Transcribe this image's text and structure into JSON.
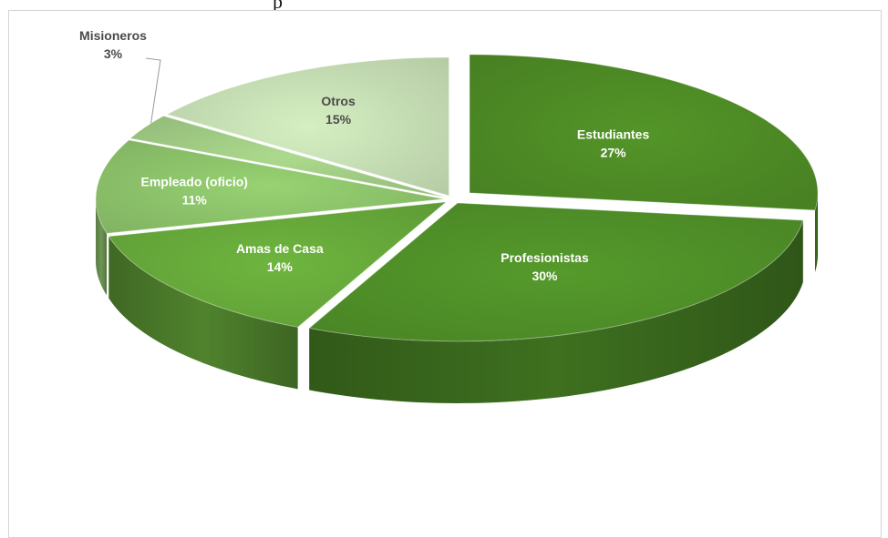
{
  "page": {
    "top_fragment": "p"
  },
  "colors": {
    "estudiantes": "#4d8a25",
    "profesionistas": "#4f8f28",
    "amas_de_casa": "#66a83a",
    "empleado": "#8cc26a",
    "misioneros": "#9fca83",
    "otros": "#c5ddb3",
    "label_light": "#ffffff",
    "label_dark": "#4b4b4b"
  },
  "chart_data": {
    "type": "pie",
    "style": "3d-exploded",
    "title": "",
    "slices": [
      {
        "label": "Estudiantes",
        "value": 27,
        "value_label": "27%"
      },
      {
        "label": "Profesionistas",
        "value": 30,
        "value_label": "30%"
      },
      {
        "label": "Amas de Casa",
        "value": 14,
        "value_label": "14%"
      },
      {
        "label": "Empleado (oficio)",
        "value": 11,
        "value_label": "11%"
      },
      {
        "label": "Misioneros",
        "value": 3,
        "value_label": "3%"
      },
      {
        "label": "Otros",
        "value": 15,
        "value_label": "15%"
      }
    ]
  }
}
